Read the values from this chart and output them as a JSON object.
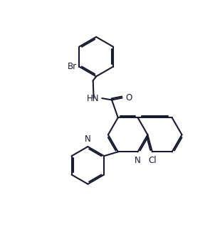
{
  "bg_color": "#ffffff",
  "line_color": "#1a1a2e",
  "line_width": 1.5,
  "font_size": 8.5,
  "figsize": [
    2.95,
    3.26
  ],
  "dpi": 100,
  "xlim": [
    0,
    10
  ],
  "ylim": [
    0,
    11
  ]
}
